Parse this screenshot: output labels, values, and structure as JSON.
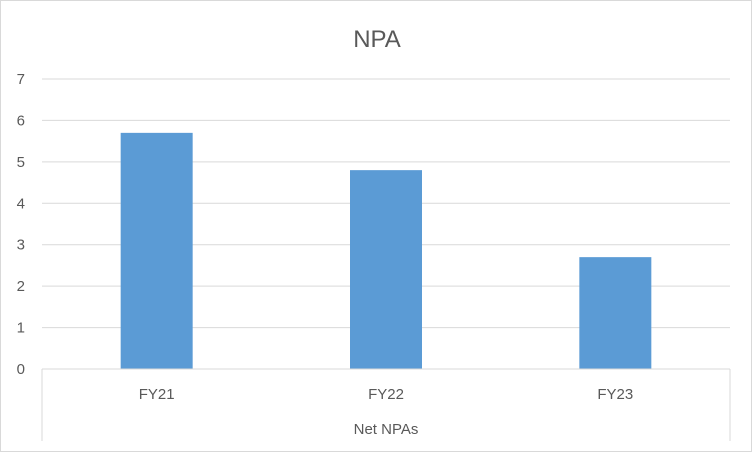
{
  "chart_data": {
    "type": "bar",
    "title": "NPA",
    "categories": [
      "FY21",
      "FY22",
      "FY23"
    ],
    "group_label": "Net NPAs",
    "series": [
      {
        "values": [
          5.7,
          4.8,
          2.7
        ]
      }
    ],
    "ylim": [
      0,
      7
    ],
    "yticks": [
      "0",
      "1",
      "2",
      "3",
      "4",
      "5",
      "6",
      "7"
    ],
    "grid": true,
    "legend": "none",
    "bar_color": "#5b9bd5"
  }
}
